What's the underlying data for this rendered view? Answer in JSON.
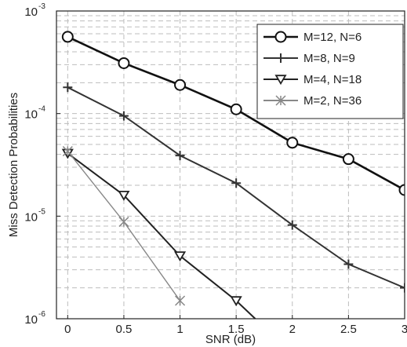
{
  "chart_data": {
    "type": "line",
    "xlabel": "SNR (dB)",
    "ylabel": "Miss Detection Probabilities",
    "x_ticks": [
      "0",
      "0.5",
      "1",
      "1.5",
      "2",
      "2.5",
      "3"
    ],
    "y_ticks": [
      {
        "base": "10",
        "exp": "-3",
        "value": 0.001
      },
      {
        "base": "10",
        "exp": "-4",
        "value": 0.0001
      },
      {
        "base": "10",
        "exp": "-5",
        "value": 1e-05
      },
      {
        "base": "10",
        "exp": "-6",
        "value": 1e-06
      }
    ],
    "xlim": [
      -0.1,
      3
    ],
    "ylim": [
      1e-06,
      0.001
    ],
    "yscale": "log",
    "grid": true,
    "legend_position": "top-right",
    "series": [
      {
        "name": "M=12, N=6",
        "marker": "circle",
        "color": "#111111",
        "x": [
          0,
          0.5,
          1,
          1.5,
          2,
          2.5,
          3
        ],
        "y": [
          0.00056,
          0.00031,
          0.00019,
          0.00011,
          5.2e-05,
          3.6e-05,
          1.8e-05
        ]
      },
      {
        "name": "M=8, N=9",
        "marker": "plus",
        "color": "#333333",
        "x": [
          0,
          0.5,
          1,
          1.5,
          2,
          2.5,
          3
        ],
        "y": [
          0.00018,
          9.5e-05,
          3.9e-05,
          2.1e-05,
          8.2e-06,
          3.4e-06,
          2e-06
        ]
      },
      {
        "name": "M=4, N=18",
        "marker": "triangle-down",
        "color": "#222222",
        "x": [
          0,
          0.5,
          1,
          1.5,
          1.67
        ],
        "y": [
          4.1e-05,
          1.6e-05,
          4.1e-06,
          1.5e-06,
          1e-06
        ]
      },
      {
        "name": "M=2, N=36",
        "marker": "x-star",
        "color": "#888888",
        "x": [
          0,
          0.5,
          1
        ],
        "y": [
          4.3e-05,
          8.8e-06,
          1.5e-06
        ]
      }
    ]
  }
}
